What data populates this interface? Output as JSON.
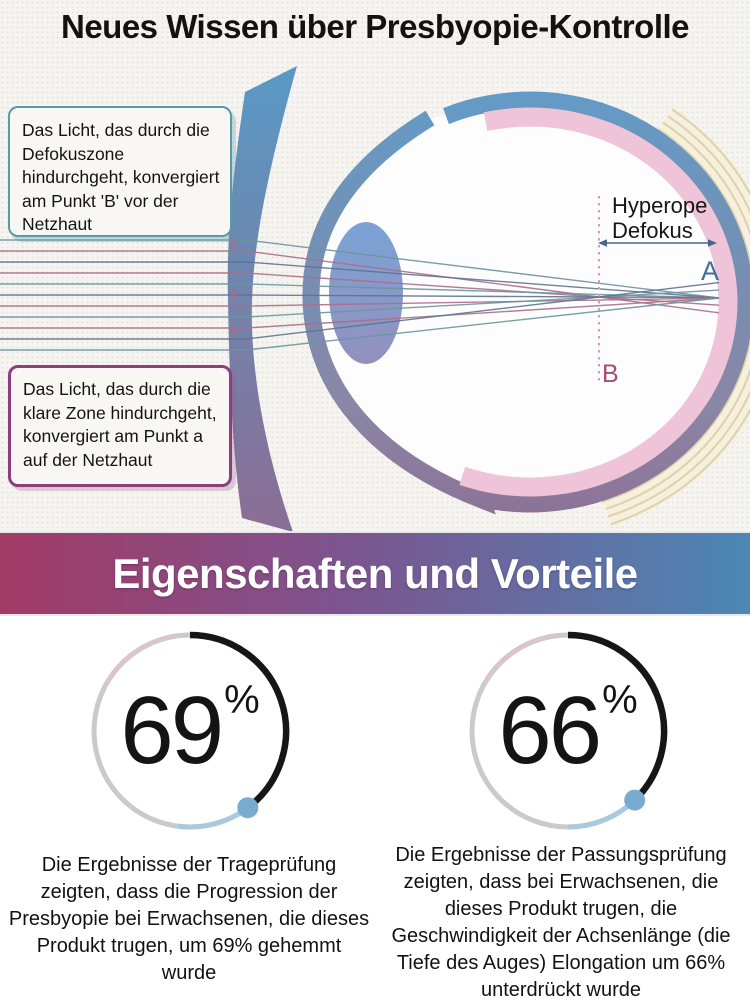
{
  "title": "Neues Wissen über Presbyopie-Kontrolle",
  "diagram": {
    "callouts": [
      {
        "text": "Das Licht, das durch die Defokuszone hindurchgeht, konvergiert am Punkt 'B' vor der Netzhaut",
        "border_color": "#579aa8"
      },
      {
        "text": "Das Licht, das durch die klare Zone hindurchgeht, konvergiert am Punkt a auf der Netzhaut",
        "border_color": "#8e3d7e"
      }
    ],
    "labels": {
      "defocus_line1": "Hyperope",
      "defocus_line2": "Defokus",
      "point_a": "A",
      "point_b": "B"
    },
    "colors": {
      "outline_top": "#639bc7",
      "outline_mid1": "#7390b4",
      "outline_mid2": "#8a86a6",
      "outline_bottom": "#8d7095",
      "retina_pink": "#efc3d8",
      "eye_fill": "#fdfdfd",
      "lens_top": "#7ba3d6",
      "lens_bottom": "#9390bd",
      "band_top": "#589ac5",
      "band_bottom": "#8b6d94",
      "beige_line": "#ddd2ad",
      "beige_fill": "#f6f0dc",
      "ray_pink": "#a86f88",
      "ray_teal": "#6b95a0",
      "ray_slate": "#5d7291",
      "dotted_line": "#d59cb8",
      "arrow": "#4a678b",
      "point_a_color": "#3e6f9a",
      "point_b_color": "#a84b73"
    }
  },
  "banner": {
    "label": "Eigenschaften und Vorteile",
    "gradient_left": "#a23a66",
    "gradient_mid": "#7c5590",
    "gradient_right": "#4b87b4"
  },
  "stats": [
    {
      "value": "69",
      "unit": "%",
      "arc_sweep_deg": 143,
      "description": "Die Ergebnisse der Trageprüfung zeigten, dass die Progression der Presbyopie bei Erwachsenen, die dieses Produkt trugen, um 69% gehemmt wurde"
    },
    {
      "value": "66",
      "unit": "%",
      "arc_sweep_deg": 136,
      "description": "Die Ergebnisse der Passungsprüfung zeigten, dass bei Erwachsenen, die dieses Produkt trugen, die Geschwindigkeit der Achsenlänge (die Tiefe des Auges) Elongation um 66% unterdrückt wurde"
    }
  ],
  "gauge_colors": {
    "arc_black": "#161616",
    "arc_rest": "#c9c9ce",
    "arc_rest_warm": "#d9c6cb",
    "arc_blue": "#a9c9df",
    "dot": "#79abd0"
  }
}
